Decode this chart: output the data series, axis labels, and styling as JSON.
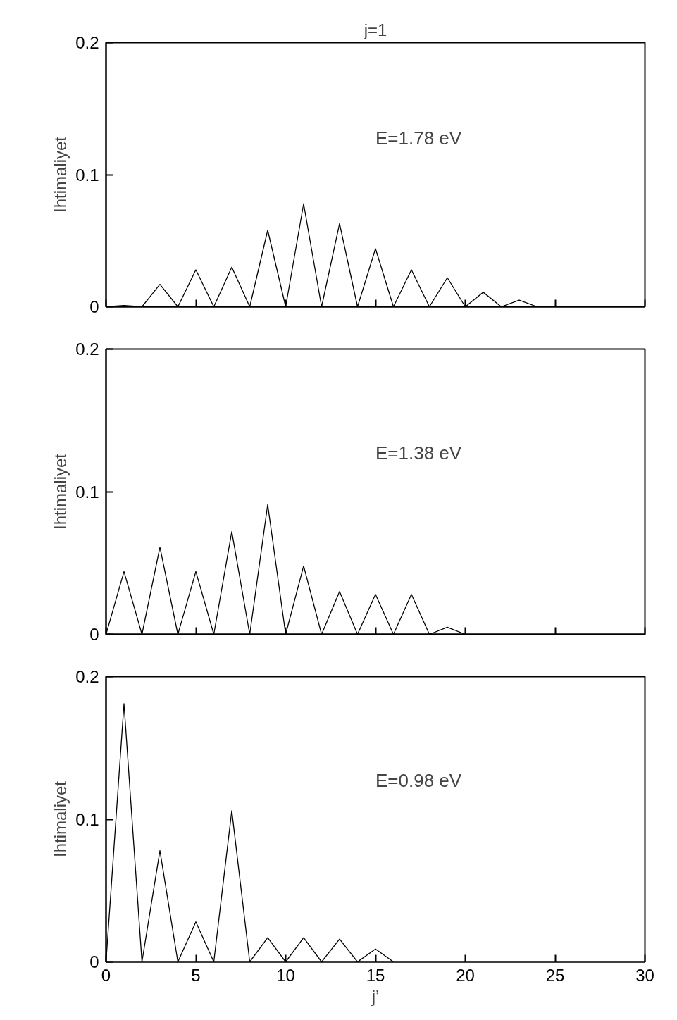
{
  "chart_data": [
    {
      "type": "line",
      "title": "j=1",
      "ylabel": "Ihtimaliyet",
      "annotations": [
        "E=1.78 eV"
      ],
      "x": [
        0,
        1,
        2,
        3,
        4,
        5,
        6,
        7,
        8,
        9,
        10,
        11,
        12,
        13,
        14,
        15,
        16,
        17,
        18,
        19,
        20,
        21,
        22,
        23,
        24,
        30
      ],
      "series": [
        {
          "color": "#000000",
          "values": [
            0,
            0.001,
            0,
            0.017,
            0,
            0.028,
            0,
            0.03,
            0,
            0.058,
            0,
            0.078,
            0,
            0.063,
            0,
            0.044,
            0,
            0.028,
            0,
            0.022,
            0,
            0.011,
            0,
            0.005,
            0,
            0
          ]
        }
      ],
      "xlim": [
        0,
        30
      ],
      "xticks": [
        {
          "value": 0,
          "label": null
        },
        {
          "value": 5,
          "label": null
        },
        {
          "value": 10,
          "label": null
        },
        {
          "value": 15,
          "label": null
        },
        {
          "value": 20,
          "label": null
        },
        {
          "value": 25,
          "label": null
        },
        {
          "value": 30,
          "label": null
        }
      ],
      "ylim": [
        0,
        0.2
      ],
      "yticks": [
        0,
        0.1,
        0.2
      ],
      "grid": false,
      "tick_labels": "y"
    },
    {
      "type": "line",
      "ylabel": "Ihtimaliyet",
      "annotations": [
        "E=1.38 eV"
      ],
      "x": [
        0,
        1,
        2,
        3,
        4,
        5,
        6,
        7,
        8,
        9,
        10,
        11,
        12,
        13,
        14,
        15,
        16,
        17,
        18,
        19,
        20
      ],
      "series": [
        {
          "color": "#000000",
          "values": [
            0,
            0.044,
            0,
            0.061,
            0,
            0.044,
            0,
            0.072,
            0,
            0.091,
            0,
            0.048,
            0,
            0.03,
            0,
            0.028,
            0,
            0.028,
            0,
            0.005,
            0
          ]
        }
      ],
      "xlim": [
        0,
        30
      ],
      "xticks": [
        {
          "value": 0,
          "label": null
        },
        {
          "value": 5,
          "label": null
        },
        {
          "value": 10,
          "label": null
        },
        {
          "value": 15,
          "label": null
        },
        {
          "value": 20,
          "label": null
        },
        {
          "value": 25,
          "label": null
        },
        {
          "value": 30,
          "label": null
        }
      ],
      "ylim": [
        0,
        0.2
      ],
      "yticks": [
        0,
        0.1,
        0.2
      ],
      "grid": false,
      "tick_labels": "y"
    },
    {
      "type": "line",
      "xlabel": "j’",
      "ylabel": "Ihtimaliyet",
      "annotations": [
        "E=0.98 eV"
      ],
      "x": [
        0,
        1,
        2,
        3,
        4,
        5,
        6,
        7,
        8,
        9,
        10,
        11,
        12,
        13,
        14,
        15,
        16
      ],
      "series": [
        {
          "color": "#000000",
          "values": [
            0,
            0.181,
            0,
            0.078,
            0,
            0.028,
            0,
            0.106,
            0,
            0.017,
            0,
            0.017,
            0,
            0.016,
            0,
            0.009,
            0
          ]
        }
      ],
      "xlim": [
        0,
        30
      ],
      "xticks": [
        0,
        5,
        10,
        15,
        20,
        25,
        30
      ],
      "ylim": [
        0,
        0.2
      ],
      "yticks": [
        0,
        0.1,
        0.2
      ],
      "grid": false
    }
  ]
}
